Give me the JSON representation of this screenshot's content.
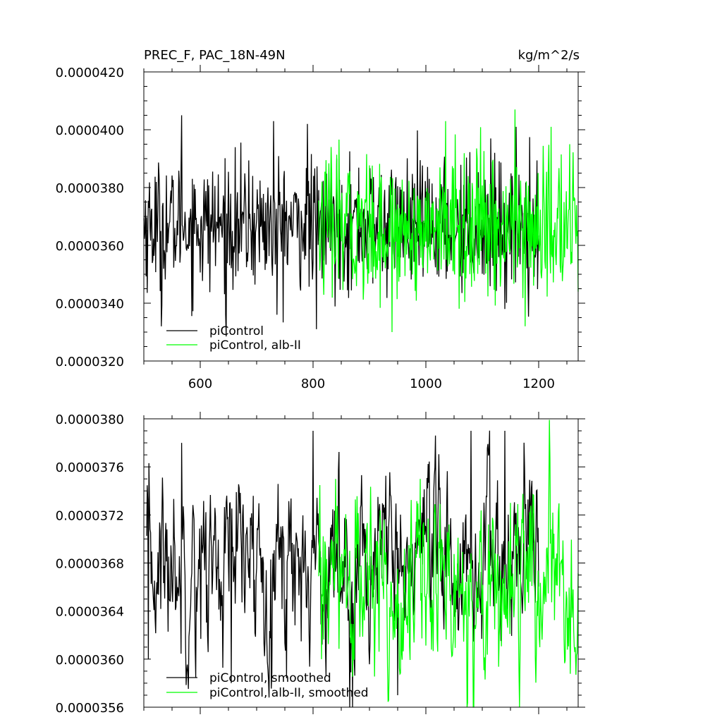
{
  "chart_data": [
    {
      "type": "line",
      "title": "PREC_F, PAC_18N-49N",
      "units": "kg/m^2/s",
      "xlim": [
        500,
        1270
      ],
      "ylim": [
        3.2e-05,
        4.2e-05
      ],
      "xticks": [
        600,
        800,
        1000,
        1200
      ],
      "xtick_labels": [
        "600",
        "800",
        "1000",
        "1200"
      ],
      "yticks": [
        3.2e-05,
        3.4e-05,
        3.6e-05,
        3.8e-05,
        4e-05,
        4.2e-05
      ],
      "ytick_labels": [
        "0.0000320",
        "0.0000340",
        "0.0000360",
        "0.0000380",
        "0.0000400",
        "0.0000420"
      ],
      "legend": {
        "placement": "bottom-left",
        "entries": [
          "piControl",
          "piControl, alb-II"
        ]
      },
      "series": [
        {
          "name": "piControl",
          "color": "#000000",
          "x_start": 500,
          "x_end": 1200,
          "mean": 3.67e-05,
          "sd": 1.1e-06,
          "peaks": [
            [
              567,
              4.05e-05
            ],
            [
              730,
              4.03e-05
            ],
            [
              790,
              4.02e-05
            ],
            [
              1160,
              4.01e-05
            ],
            [
              1122,
              3.92e-05
            ]
          ],
          "troughs": [
            [
              531,
              3.32e-05
            ],
            [
              645,
              3.36e-05
            ],
            [
              736,
              3.36e-05
            ],
            [
              806,
              3.31e-05
            ],
            [
              1140,
              3.38e-05
            ]
          ]
        },
        {
          "name": "piControl, alb-II",
          "color": "#00ff00",
          "x_start": 810,
          "x_end": 1270,
          "mean": 3.66e-05,
          "sd": 1.2e-06,
          "peaks": [
            [
              1158,
              4.07e-05
            ],
            [
              1035,
              4.03e-05
            ],
            [
              1255,
              3.95e-05
            ]
          ],
          "troughs": [
            [
              940,
              3.3e-05
            ],
            [
              1176,
              3.32e-05
            ],
            [
              1270,
              3.44e-05
            ]
          ]
        }
      ]
    },
    {
      "type": "line",
      "title": "",
      "xlim": [
        500,
        1270
      ],
      "ylim": [
        3.56e-05,
        3.8e-05
      ],
      "xticks": [
        600,
        800,
        1000,
        1200
      ],
      "xtick_labels": [
        "",
        "",
        "",
        ""
      ],
      "yticks": [
        3.56e-05,
        3.6e-05,
        3.64e-05,
        3.68e-05,
        3.72e-05,
        3.76e-05,
        3.8e-05
      ],
      "ytick_labels": [
        "0.0000356",
        "0.0000360",
        "0.0000364",
        "0.0000368",
        "0.0000372",
        "0.0000376",
        "0.0000380"
      ],
      "legend": {
        "placement": "bottom-left",
        "entries": [
          "piControl, smoothed",
          "piControl, alb-II, smoothed"
        ]
      },
      "series": [
        {
          "name": "piControl, smoothed",
          "color": "#000000",
          "x_start": 505,
          "x_end": 1200,
          "mean": 3.68e-05,
          "sd": 3.5e-07,
          "peaks": [
            [
              567,
              3.78e-05
            ],
            [
              800,
              3.79e-05
            ],
            [
              1140,
              3.79e-05
            ],
            [
              1080,
              3.79e-05
            ]
          ],
          "troughs": [
            [
              508,
              3.6e-05
            ],
            [
              655,
              3.58e-05
            ],
            [
              870,
              3.56e-05
            ],
            [
              950,
              3.57e-05
            ]
          ]
        },
        {
          "name": "piControl, alb-II, smoothed",
          "color": "#00ff00",
          "x_start": 810,
          "x_end": 1270,
          "mean": 3.66e-05,
          "sd": 3.5e-07,
          "peaks": [
            [
              840,
              3.75e-05
            ],
            [
              990,
              3.75e-05
            ],
            [
              1150,
              3.73e-05
            ]
          ],
          "troughs": [
            [
              815,
              3.6e-05
            ],
            [
              1045,
              3.61e-05
            ],
            [
              1265,
              3.61e-05
            ]
          ]
        }
      ]
    }
  ]
}
